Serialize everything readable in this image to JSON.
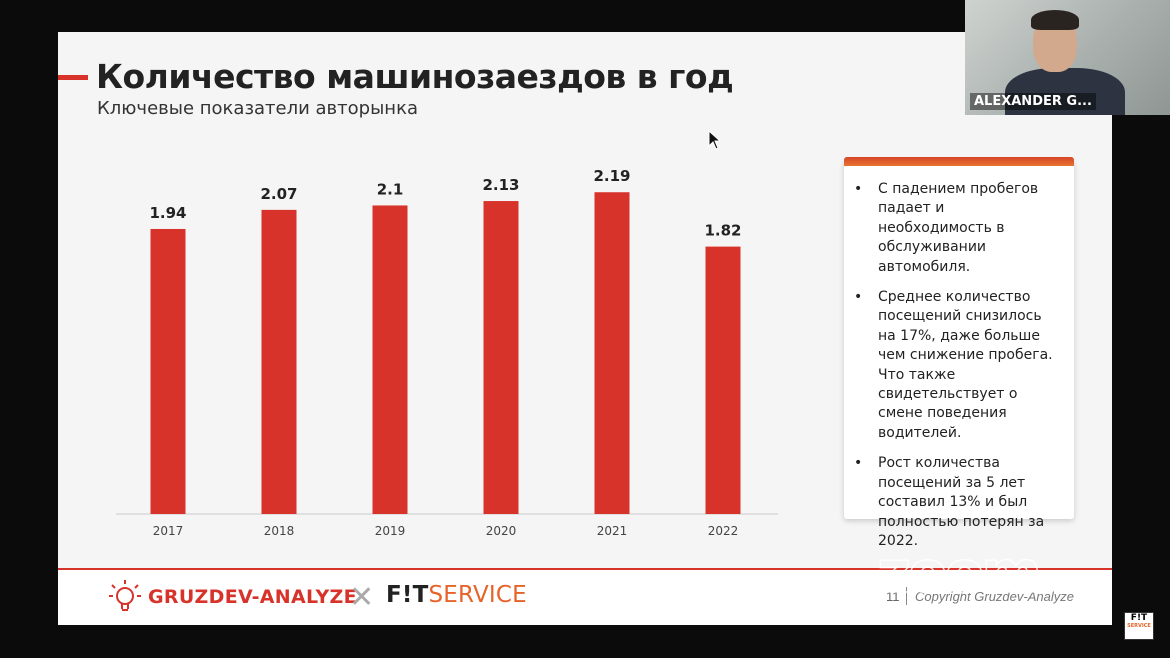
{
  "slide": {
    "title": "Количество машинозаездов в год",
    "subtitle": "Ключевые показатели авторынка"
  },
  "chart_data": {
    "type": "bar",
    "title": "Количество машинозаездов в год",
    "categories": [
      "2017",
      "2018",
      "2019",
      "2020",
      "2021",
      "2022"
    ],
    "values": [
      1.94,
      2.07,
      2.1,
      2.13,
      2.19,
      1.82
    ],
    "value_labels": [
      "1.94",
      "2.07",
      "2.1",
      "2.13",
      "2.19",
      "1.82"
    ],
    "ylim": [
      0,
      2.6
    ],
    "xlabel": "",
    "ylabel": "",
    "color": "#d8332a"
  },
  "notes": {
    "items": [
      "С падением пробегов падает и необходимость в обслуживании автомобиля.",
      "Среднее количество посещений снизилось на 17%, даже больше чем снижение пробега. Что также свидетельствует о смене поведения водителей.",
      "Рост количества посещений за 5 лет составил 13% и был полностью потерян за 2022."
    ]
  },
  "footer": {
    "logo_left": "GRUZDEV-ANALYZE",
    "cross": "✕",
    "logo_right_fit": "F!T",
    "logo_right_service": "SERVICE",
    "page_number": "11",
    "copyright": "Copyright Gruzdev-Analyze"
  },
  "overlay": {
    "zoom_watermark": "zoom",
    "participant_name": "ALEXANDER G...",
    "badge_text": "F!T",
    "badge_sub": "SERVICE"
  },
  "colors": {
    "accent": "#d8332a",
    "service_orange": "#e6632a"
  }
}
